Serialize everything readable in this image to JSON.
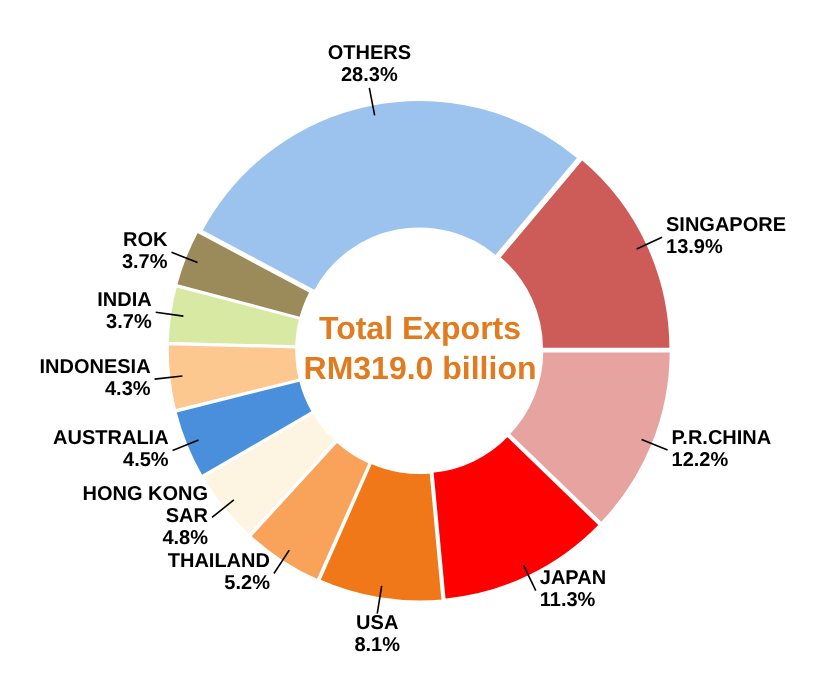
{
  "chart_data": {
    "type": "donut",
    "title": "Total Exports RM319.0 billion",
    "categories": [
      "SINGAPORE",
      "P.R.CHINA",
      "JAPAN",
      "USA",
      "THAILAND",
      "HONG KONG SAR",
      "AUSTRALIA",
      "INDONESIA",
      "INDIA",
      "ROK",
      "OTHERS"
    ],
    "values": [
      13.9,
      12.2,
      11.3,
      8.1,
      5.2,
      4.8,
      4.5,
      4.3,
      3.7,
      3.7,
      28.3
    ],
    "colors": [
      "#cd5b58",
      "#e6a3a0",
      "#ff0000",
      "#f07818",
      "#f9a35a",
      "#fdf5e2",
      "#4a8fdc",
      "#fcc88f",
      "#d7e9a3",
      "#9b8a5a",
      "#9cc2ee"
    ],
    "value_labels": [
      "13.9%",
      "12.2%",
      "11.3%",
      "8.1%",
      "5.2%",
      "4.8%",
      "4.5%",
      "4.3%",
      "3.7%",
      "3.7%",
      "28.3%"
    ],
    "legend": false
  }
}
